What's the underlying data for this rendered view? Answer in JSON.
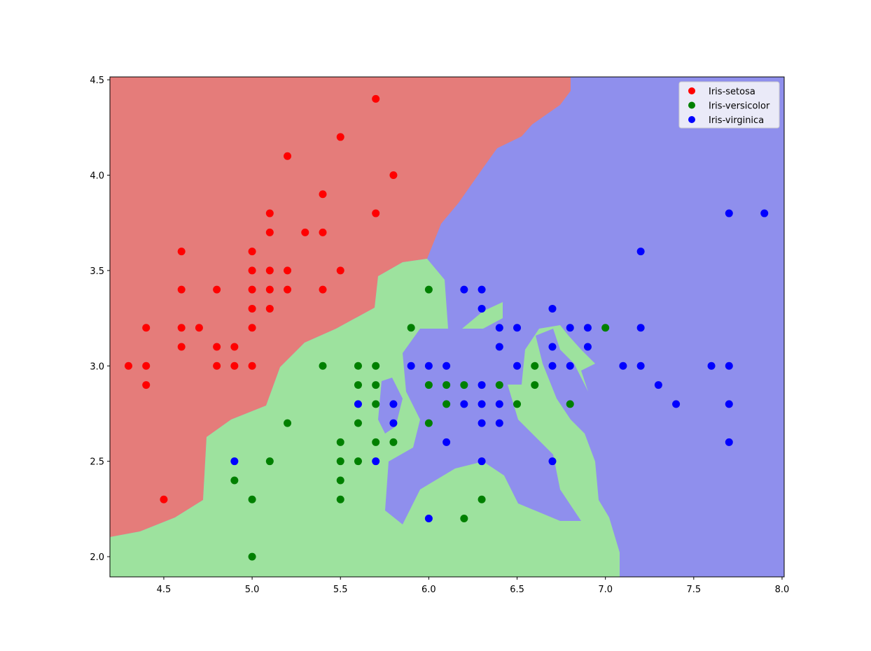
{
  "chart_data": {
    "type": "scatter",
    "xlim": [
      4.195,
      8.012
    ],
    "ylim": [
      1.894,
      4.515
    ],
    "xticks": [
      4.5,
      {
        "value": 5,
        "label": "5.0"
      },
      5.5,
      {
        "value": 6,
        "label": "6.0"
      },
      6.5,
      {
        "value": 7,
        "label": "7.0"
      },
      7.5,
      {
        "value": 8,
        "label": "8.0"
      }
    ],
    "yticks": [
      {
        "value": 2,
        "label": "2.0"
      },
      2.5,
      {
        "value": 3,
        "label": "3.0"
      },
      3.5,
      {
        "value": 4,
        "label": "4.0"
      },
      4.5
    ],
    "legend": "upper right",
    "series": [
      {
        "name": "Iris-setosa",
        "color": "#ff0000",
        "x": [
          5.7,
          5.5,
          5.2,
          5.8,
          5.4,
          5.1,
          5.7,
          5.1,
          5.3,
          5.4,
          4.6,
          5.0,
          5.0,
          5.1,
          5.2,
          5.5,
          4.6,
          4.8,
          5.0,
          5.1,
          5.2,
          5.4,
          5.0,
          5.1,
          4.4,
          4.6,
          4.7,
          5.0,
          4.6,
          4.8,
          4.9,
          4.3,
          4.4,
          4.8,
          4.9,
          5.0,
          4.4,
          4.5
        ],
        "values": [
          4.4,
          4.2,
          4.1,
          4.0,
          3.9,
          3.8,
          3.8,
          3.7,
          3.7,
          3.7,
          3.6,
          3.6,
          3.5,
          3.5,
          3.5,
          3.5,
          3.4,
          3.4,
          3.4,
          3.4,
          3.4,
          3.4,
          3.3,
          3.3,
          3.2,
          3.2,
          3.2,
          3.2,
          3.1,
          3.1,
          3.1,
          3.0,
          3.0,
          3.0,
          3.0,
          3.0,
          2.9,
          2.3
        ]
      },
      {
        "name": "Iris-versicolor",
        "color": "#008000",
        "x": [
          6.0,
          5.9,
          7.0,
          5.4,
          5.6,
          5.7,
          6.6,
          5.6,
          5.7,
          6.0,
          6.1,
          6.2,
          6.4,
          6.6,
          5.7,
          6.1,
          6.5,
          6.8,
          5.2,
          5.6,
          6.0,
          5.5,
          5.7,
          5.8,
          5.1,
          5.5,
          5.6,
          4.9,
          5.5,
          5.0,
          5.5,
          6.3,
          6.2,
          5.0
        ],
        "values": [
          3.4,
          3.2,
          3.2,
          3.0,
          3.0,
          3.0,
          3.0,
          2.9,
          2.9,
          2.9,
          2.9,
          2.9,
          2.9,
          2.9,
          2.8,
          2.8,
          2.8,
          2.8,
          2.7,
          2.7,
          2.7,
          2.6,
          2.6,
          2.6,
          2.5,
          2.5,
          2.5,
          2.4,
          2.4,
          2.3,
          2.3,
          2.3,
          2.2,
          2.0
        ]
      },
      {
        "name": "Iris-virginica",
        "color": "#0000ff",
        "x": [
          7.7,
          7.9,
          7.2,
          6.2,
          6.3,
          6.3,
          6.7,
          6.4,
          6.5,
          6.8,
          6.9,
          7.2,
          6.4,
          6.7,
          6.9,
          5.9,
          6.0,
          6.1,
          6.5,
          6.7,
          6.8,
          7.1,
          7.2,
          7.6,
          7.7,
          6.3,
          7.3,
          5.6,
          5.8,
          6.2,
          6.3,
          6.4,
          7.4,
          7.7,
          5.8,
          6.3,
          6.4,
          6.1,
          7.7,
          4.9,
          5.7,
          6.3,
          6.7,
          6.0
        ],
        "values": [
          3.8,
          3.8,
          3.6,
          3.4,
          3.4,
          3.3,
          3.3,
          3.2,
          3.2,
          3.2,
          3.2,
          3.2,
          3.1,
          3.1,
          3.1,
          3.0,
          3.0,
          3.0,
          3.0,
          3.0,
          3.0,
          3.0,
          3.0,
          3.0,
          3.0,
          2.9,
          2.9,
          2.8,
          2.8,
          2.8,
          2.8,
          2.8,
          2.8,
          2.8,
          2.7,
          2.7,
          2.7,
          2.6,
          2.6,
          2.5,
          2.5,
          2.5,
          2.5,
          2.2
        ]
      }
    ]
  }
}
